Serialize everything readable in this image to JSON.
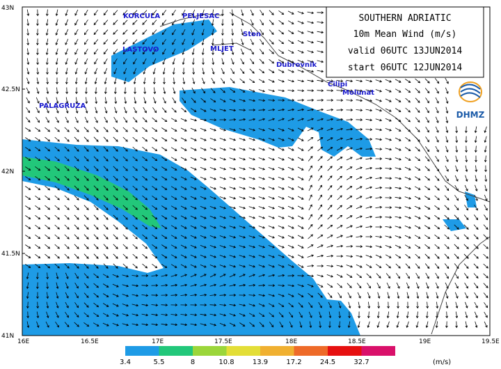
{
  "title_box": {
    "line1": "SOUTHERN ADRIATIC",
    "line2": "10m  Mean  Wind  (m/s)",
    "line3": "valid  06UTC  13JUN2014",
    "line4": "start  06UTC  12JUN2014"
  },
  "logo": {
    "text": "DHMZ"
  },
  "axes": {
    "lat_labels": [
      "43N",
      "42.5N",
      "42N",
      "41.5N",
      "41N"
    ],
    "lon_labels": [
      "16E",
      "16.5E",
      "17E",
      "17.5E",
      "18E",
      "18.5E",
      "19E",
      "19.5E"
    ]
  },
  "places": [
    {
      "name": "KORCULA"
    },
    {
      "name": "PELJESAC"
    },
    {
      "name": "LASTOVO"
    },
    {
      "name": "MLJET"
    },
    {
      "name": "Ston"
    },
    {
      "name": "Dubrovnik"
    },
    {
      "name": "Cilipi"
    },
    {
      "name": "Molunat"
    },
    {
      "name": "PALAGRUZA"
    }
  ],
  "colorbar": {
    "unit": "(m/s)",
    "thresholds": [
      "3.4",
      "5.5",
      "8",
      "10.8",
      "13.9",
      "17.2",
      "24.5",
      "32.7"
    ],
    "colors": [
      "#1e9be6",
      "#22c77a",
      "#9bd63a",
      "#e3de37",
      "#f0b030",
      "#ee6a28",
      "#e61010",
      "#d9106a"
    ]
  },
  "colors": {
    "fill_low": "#1e9be6",
    "fill_mid": "#22c77a",
    "coast": "#444444"
  }
}
